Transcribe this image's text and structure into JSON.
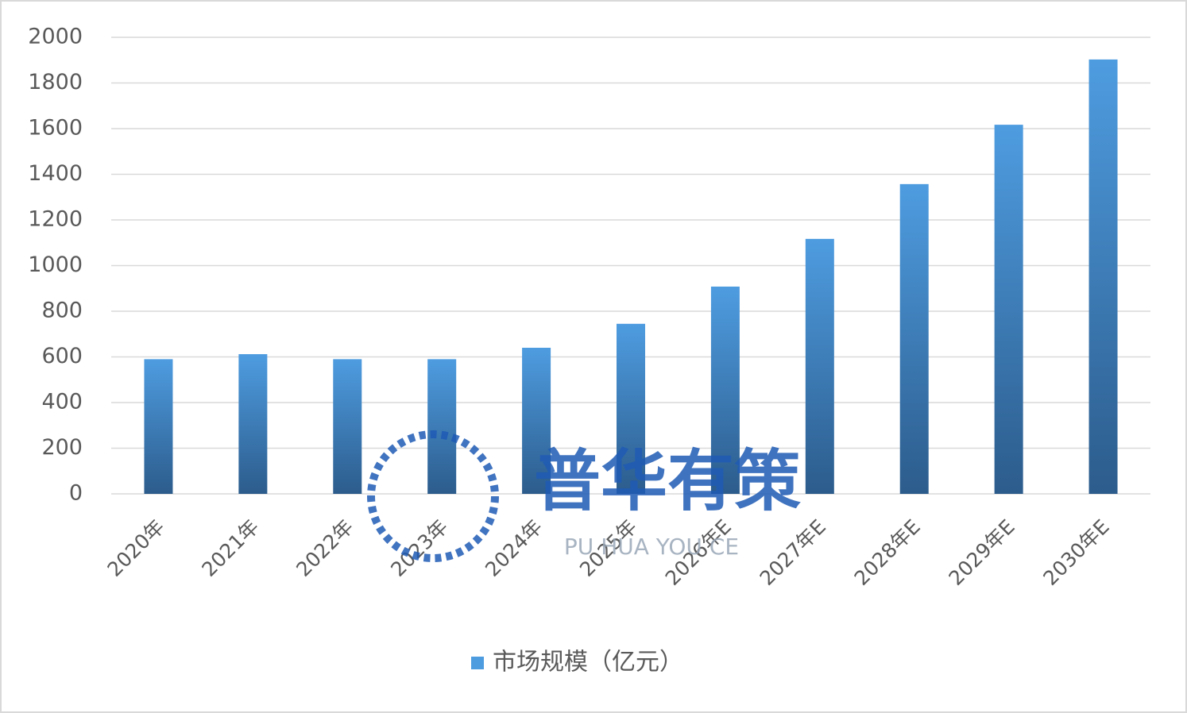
{
  "chart_data": {
    "type": "bar",
    "categories": [
      "2020年",
      "2021年",
      "2022年",
      "2023年",
      "2024年",
      "2025年",
      "2026年E",
      "2027年E",
      "2028年E",
      "2029年E",
      "2030年E"
    ],
    "series": [
      {
        "name": "市场规模（亿元）",
        "color": "#4e9ce0",
        "values": [
          590,
          612,
          590,
          590,
          640,
          745,
          908,
          1117,
          1357,
          1617,
          1903
        ]
      }
    ],
    "ylim": [
      0,
      2000
    ],
    "yticks": [
      0,
      200,
      400,
      600,
      800,
      1000,
      1200,
      1400,
      1600,
      1800,
      2000
    ],
    "grid": true,
    "legend": "bottom",
    "watermark": "普华有策",
    "watermark_subtitle": "PU HUA YOU CE"
  }
}
